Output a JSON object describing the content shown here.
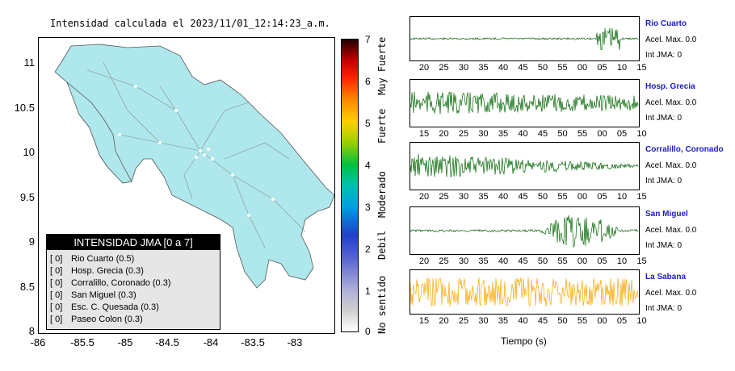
{
  "map": {
    "title": "Intensidad calculada el 2023/11/01_12:14:23_a.m.",
    "yticks": [
      "11",
      "10.5",
      "10",
      "9.5",
      "9",
      "8.5",
      "8"
    ],
    "xticks": [
      "-86",
      "-85.5",
      "-85",
      "-84.5",
      "-84",
      "-83.5",
      "-83"
    ],
    "land_color": "#aee8ec"
  },
  "legend": {
    "title": "INTENSIDAD JMA [0 a 7]",
    "rows": [
      {
        "value": "[ 0]",
        "label": "Rio Cuarto (0.5)"
      },
      {
        "value": "[ 0]",
        "label": "Hosp. Grecia (0.3)"
      },
      {
        "value": "[ 0]",
        "label": "Corralillo, Coronado (0.3)"
      },
      {
        "value": "[ 0]",
        "label": "San Miguel (0.3)"
      },
      {
        "value": "[ 0]",
        "label": "Esc. C. Quesada (0.3)"
      },
      {
        "value": "[ 0]",
        "label": "Paseo Colon (0.3)"
      }
    ]
  },
  "colorbar": {
    "ticks": [
      "7",
      "6",
      "5",
      "4",
      "3",
      "2",
      "1",
      "0"
    ],
    "categories": [
      "Muy Fuerte",
      "Fuerte",
      "Moderado",
      "Debil",
      "No sentido"
    ]
  },
  "traces": [
    {
      "name": "Rio Cuarto",
      "acel_label": "Acel. Max. 0.0",
      "int_label": "Int JMA: 0",
      "color": "#006400",
      "ticks": [
        "20",
        "25",
        "30",
        "35",
        "40",
        "45",
        "50",
        "55",
        "00",
        "05",
        "10",
        "15"
      ]
    },
    {
      "name": "Hosp. Grecia",
      "acel_label": "Acel. Max. 0.0",
      "int_label": "Int JMA: 0",
      "color": "#006400",
      "ticks": [
        "15",
        "20",
        "25",
        "30",
        "35",
        "40",
        "45",
        "50",
        "55",
        "00",
        "05",
        "10"
      ]
    },
    {
      "name": "Corralillo, Coronado",
      "acel_label": "Acel. Max. 0.0",
      "int_label": "Int JMA: 0",
      "color": "#006400",
      "ticks": [
        "20",
        "25",
        "30",
        "35",
        "40",
        "45",
        "50",
        "55",
        "00",
        "05",
        "10",
        "15"
      ]
    },
    {
      "name": "San Miguel",
      "acel_label": "Acel. Max. 0.0",
      "int_label": "Int JMA: 0",
      "color": "#006400",
      "ticks": [
        "20",
        "25",
        "30",
        "35",
        "40",
        "45",
        "50",
        "55",
        "00",
        "05",
        "10",
        "15"
      ]
    },
    {
      "name": "La Sabana",
      "acel_label": "Acel. Max. 0.0",
      "int_label": "Int JMA: 0",
      "color": "#ffa500",
      "ticks": [
        "15",
        "20",
        "25",
        "30",
        "35",
        "40",
        "45",
        "50",
        "55",
        "00",
        "05",
        "10"
      ]
    }
  ],
  "xaxis_label": "Tiempo (s)"
}
